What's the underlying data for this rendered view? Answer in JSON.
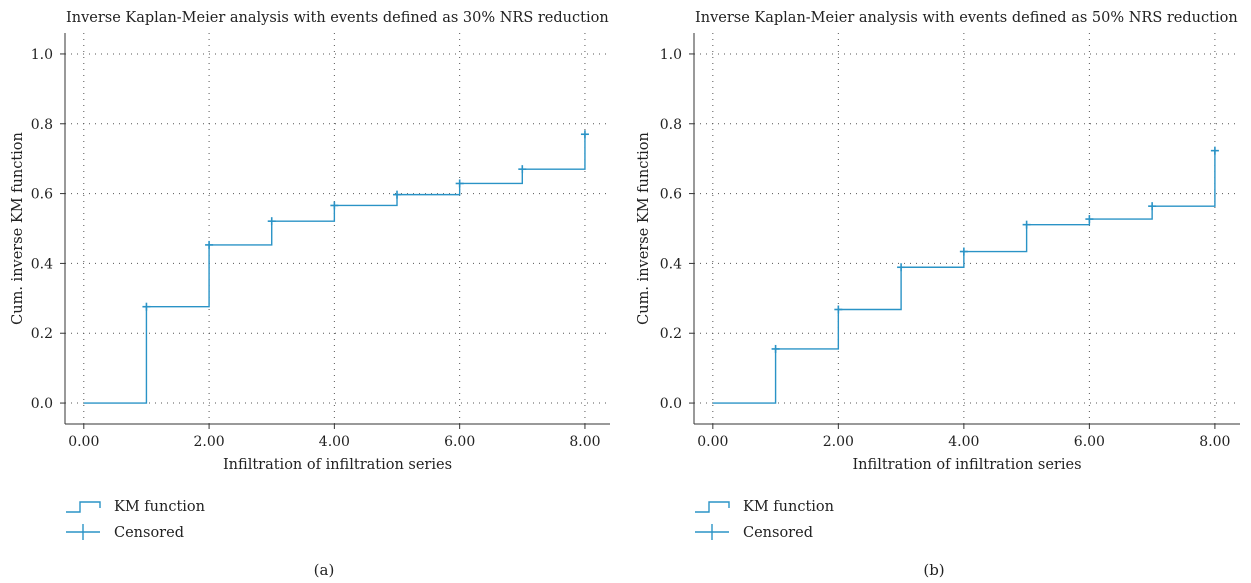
{
  "chart_data": [
    {
      "type": "line",
      "step": true,
      "title": "Inverse Kaplan-Meier analysis with events defined as 30% NRS reduction",
      "xlabel": "Infiltration of infiltration series",
      "ylabel": "Cum. inverse KM function",
      "xlim": [
        -0.3,
        8.4
      ],
      "ylim": [
        -0.06,
        1.06
      ],
      "xticks": [
        0,
        2,
        4,
        6,
        8
      ],
      "xtick_labels": [
        "0.00",
        "2.00",
        "4.00",
        "6.00",
        "8.00"
      ],
      "yticks": [
        0,
        0.2,
        0.4,
        0.6,
        0.8,
        1.0
      ],
      "ytick_labels": [
        "0.0",
        "0.2",
        "0.4",
        "0.6",
        "0.8",
        "1.0"
      ],
      "grid": true,
      "legend_position": "bottom-left",
      "series": [
        {
          "name": "KM function",
          "color": "#2a93c6",
          "x": [
            0,
            1,
            2,
            3,
            4,
            5,
            6,
            7,
            8
          ],
          "y": [
            0,
            0.276,
            0.453,
            0.521,
            0.566,
            0.597,
            0.629,
            0.67,
            0.77
          ]
        },
        {
          "name": "Censored",
          "color": "#2a93c6",
          "x": [
            1,
            2,
            3,
            4,
            5,
            6,
            7,
            8
          ],
          "y": [
            0.276,
            0.453,
            0.521,
            0.566,
            0.597,
            0.629,
            0.67,
            0.77
          ]
        }
      ]
    },
    {
      "type": "line",
      "step": true,
      "title": "Inverse Kaplan-Meier analysis with events defined as 50% NRS reduction",
      "xlabel": "Infiltration of infiltration series",
      "ylabel": "Cum. inverse KM function",
      "xlim": [
        -0.3,
        8.4
      ],
      "ylim": [
        -0.06,
        1.06
      ],
      "xticks": [
        0,
        2,
        4,
        6,
        8
      ],
      "xtick_labels": [
        "0.00",
        "2.00",
        "4.00",
        "6.00",
        "8.00"
      ],
      "yticks": [
        0,
        0.2,
        0.4,
        0.6,
        0.8,
        1.0
      ],
      "ytick_labels": [
        "0.0",
        "0.2",
        "0.4",
        "0.6",
        "0.8",
        "1.0"
      ],
      "grid": true,
      "legend_position": "bottom-left",
      "series": [
        {
          "name": "KM function",
          "color": "#2a93c6",
          "x": [
            0,
            1,
            2,
            3,
            4,
            5,
            6,
            7,
            8
          ],
          "y": [
            0,
            0.155,
            0.268,
            0.389,
            0.434,
            0.511,
            0.527,
            0.564,
            0.723
          ]
        },
        {
          "name": "Censored",
          "color": "#2a93c6",
          "x": [
            1,
            2,
            3,
            4,
            5,
            6,
            7,
            8
          ],
          "y": [
            0.155,
            0.268,
            0.389,
            0.434,
            0.511,
            0.527,
            0.564,
            0.723
          ]
        }
      ]
    }
  ],
  "panel_labels": [
    "(a)",
    "(b)"
  ]
}
